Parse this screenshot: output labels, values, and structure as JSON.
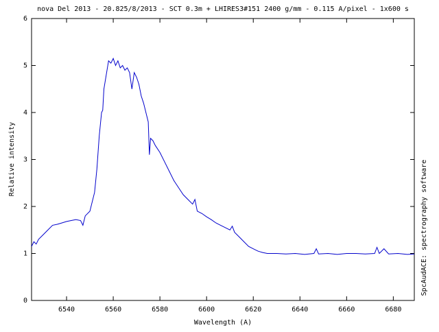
{
  "chart_data": {
    "type": "line",
    "title": "nova Del 2013 - 20.825/8/2013 - SCT 0.3m + LHIRES3#151 2400 g/mm - 0.115 A/pixel - 1x600 s",
    "x_label": "Wavelength (A)",
    "y_label": "Relative intensity",
    "side_note": "SpcAudACE: spectrography software",
    "xlim": [
      6525,
      6689
    ],
    "ylim": [
      0,
      6
    ],
    "xticks": [
      6540,
      6560,
      6580,
      6600,
      6620,
      6640,
      6660,
      6680
    ],
    "yticks": [
      0,
      1,
      2,
      3,
      4,
      5,
      6
    ],
    "grid": false,
    "x": [
      6525,
      6526,
      6527,
      6528,
      6530,
      6532,
      6534,
      6536,
      6538,
      6540,
      6542,
      6544,
      6546,
      6547,
      6548,
      6550,
      6551,
      6552,
      6553,
      6554,
      6555,
      6555.5,
      6556,
      6557,
      6558,
      6559,
      6560,
      6561,
      6562,
      6563,
      6564,
      6565,
      6566,
      6567,
      6568,
      6569,
      6570,
      6571,
      6572,
      6573,
      6574,
      6575,
      6575.5,
      6576,
      6577,
      6578,
      6580,
      6582,
      6584,
      6586,
      6588,
      6590,
      6592,
      6594,
      6595,
      6596,
      6598,
      6600,
      6602,
      6604,
      6606,
      6608,
      6610,
      6611,
      6612,
      6614,
      6616,
      6618,
      6620,
      6622,
      6624,
      6626,
      6630,
      6634,
      6638,
      6642,
      6646,
      6647,
      6648,
      6652,
      6656,
      6660,
      6664,
      6668,
      6672,
      6673,
      6674,
      6676,
      6678,
      6682,
      6686,
      6689
    ],
    "series": [
      {
        "name": "spectrum",
        "color": "#0000cc",
        "values": [
          1.15,
          1.25,
          1.2,
          1.3,
          1.4,
          1.5,
          1.6,
          1.62,
          1.65,
          1.68,
          1.7,
          1.72,
          1.7,
          1.6,
          1.8,
          1.9,
          2.1,
          2.3,
          2.8,
          3.5,
          4.0,
          4.05,
          4.5,
          4.8,
          5.1,
          5.05,
          5.15,
          5.0,
          5.1,
          4.95,
          5.0,
          4.9,
          4.95,
          4.85,
          4.5,
          4.85,
          4.75,
          4.6,
          4.35,
          4.2,
          4.0,
          3.8,
          3.1,
          3.45,
          3.4,
          3.3,
          3.15,
          2.95,
          2.75,
          2.55,
          2.4,
          2.25,
          2.15,
          2.05,
          2.15,
          1.9,
          1.85,
          1.78,
          1.72,
          1.65,
          1.6,
          1.55,
          1.5,
          1.58,
          1.45,
          1.35,
          1.25,
          1.15,
          1.1,
          1.05,
          1.02,
          1.0,
          1.0,
          0.99,
          1.0,
          0.98,
          1.0,
          1.1,
          0.99,
          1.0,
          0.98,
          1.0,
          1.0,
          0.99,
          1.0,
          1.13,
          1.0,
          1.1,
          0.99,
          1.0,
          0.98,
          0.99
        ]
      }
    ]
  }
}
